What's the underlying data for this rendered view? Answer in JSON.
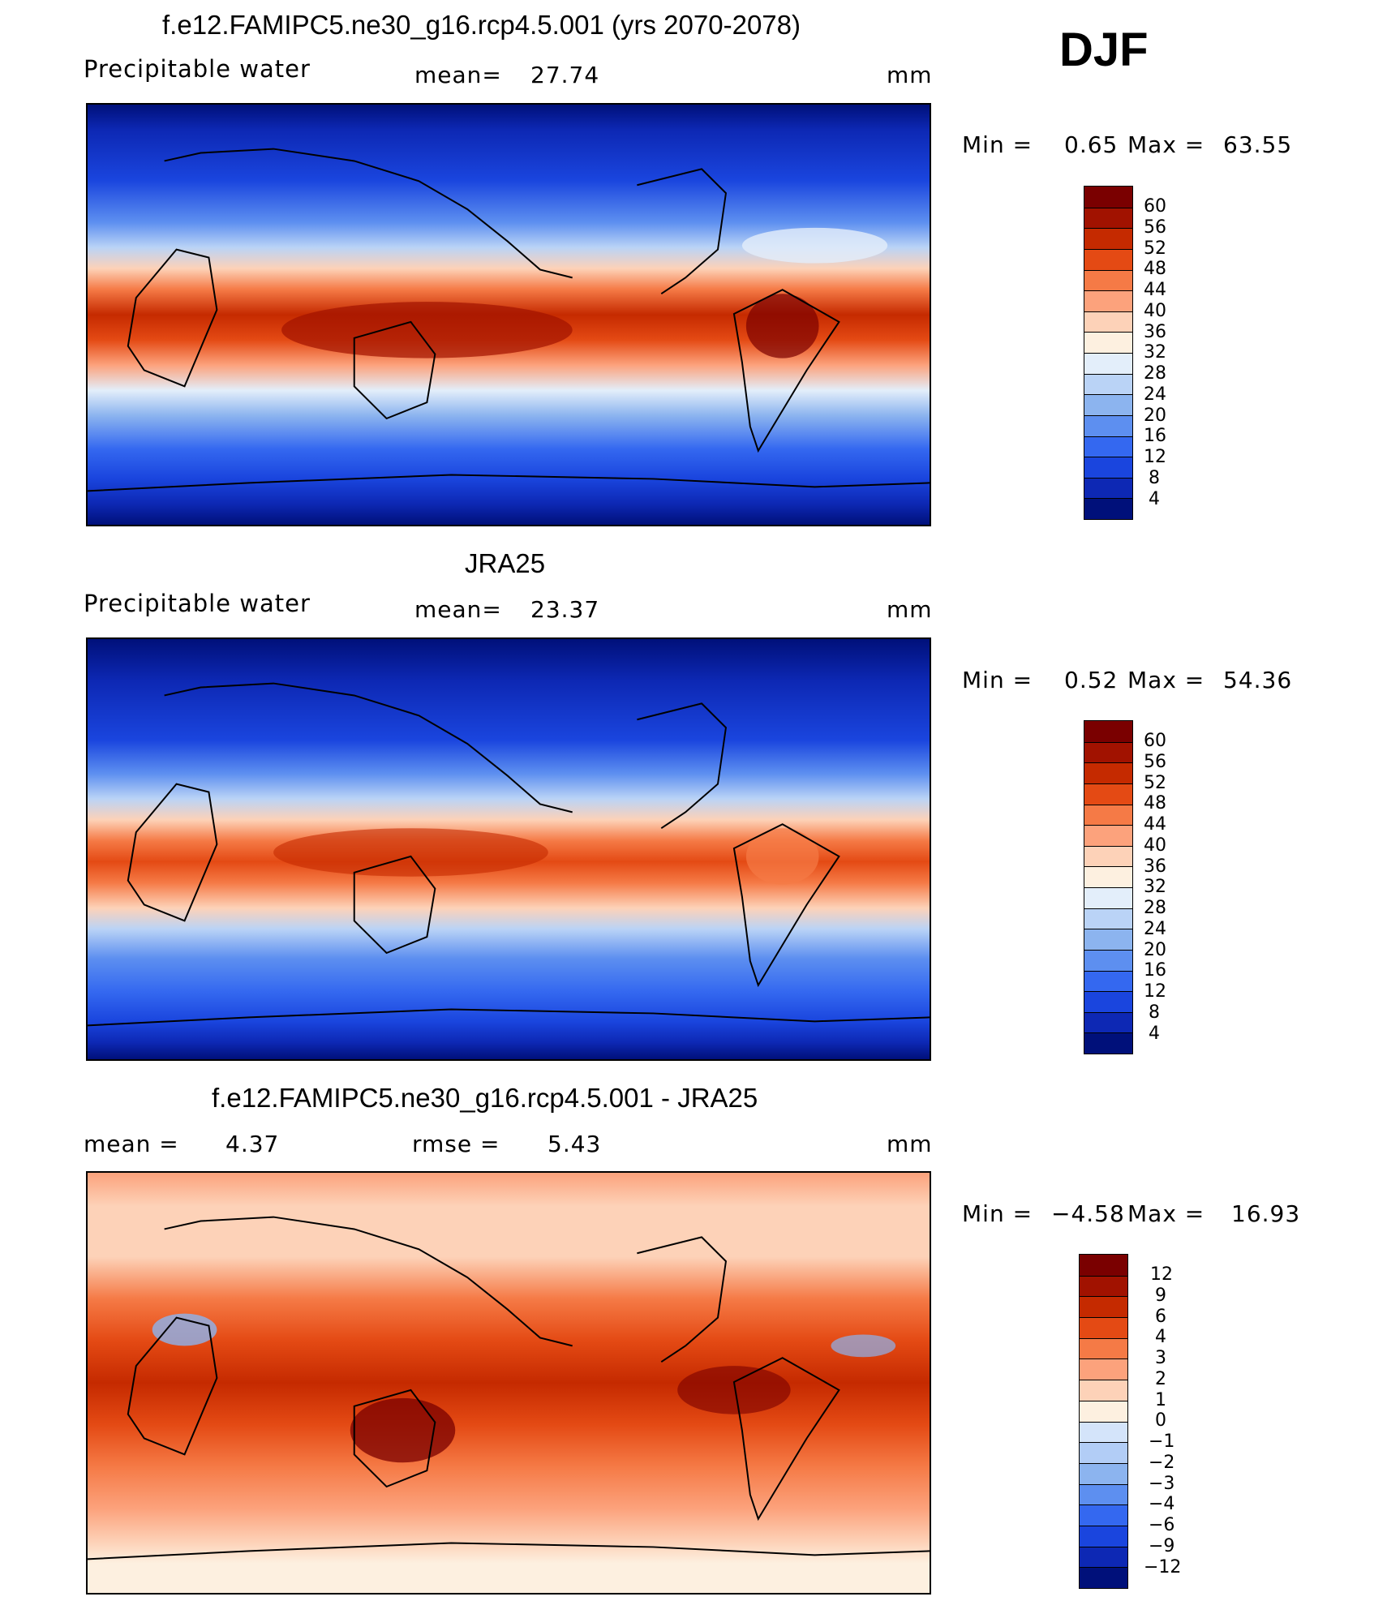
{
  "season": "DJF",
  "panels": [
    {
      "title": "f.e12.FAMIPC5.ne30_g16.rcp4.5.001 (yrs 2070-2078)",
      "left_label": "Precipitable water",
      "center_label": "mean=",
      "center_value": "27.74",
      "units": "mm",
      "min_label": "Min =",
      "min_value": "0.65",
      "max_label": "Max =",
      "max_value": "63.55",
      "levels": [
        "60",
        "56",
        "52",
        "48",
        "44",
        "40",
        "36",
        "32",
        "28",
        "24",
        "20",
        "16",
        "12",
        "8",
        "4"
      ],
      "colors": [
        "#7a0000",
        "#a11200",
        "#c52a00",
        "#e44a14",
        "#f57a46",
        "#fca27c",
        "#fdd2b8",
        "#fdf0e0",
        "#e3eefa",
        "#bad3f6",
        "#8cb4ef",
        "#5d8ff0",
        "#3468f0",
        "#1a45de",
        "#0d28b4",
        "#00107a"
      ]
    },
    {
      "title": "JRA25",
      "left_label": "Precipitable water",
      "center_label": "mean=",
      "center_value": "23.37",
      "units": "mm",
      "min_label": "Min =",
      "min_value": "0.52",
      "max_label": "Max =",
      "max_value": "54.36",
      "levels": [
        "60",
        "56",
        "52",
        "48",
        "44",
        "40",
        "36",
        "32",
        "28",
        "24",
        "20",
        "16",
        "12",
        "8",
        "4"
      ],
      "colors": [
        "#7a0000",
        "#a11200",
        "#c52a00",
        "#e44a14",
        "#f57a46",
        "#fca27c",
        "#fdd2b8",
        "#fdf0e0",
        "#e3eefa",
        "#bad3f6",
        "#8cb4ef",
        "#5d8ff0",
        "#3468f0",
        "#1a45de",
        "#0d28b4",
        "#00107a"
      ]
    },
    {
      "title": "f.e12.FAMIPC5.ne30_g16.rcp4.5.001 - JRA25",
      "left_label": "mean =",
      "left_value": "4.37",
      "center_label": "rmse =",
      "center_value": "5.43",
      "units": "mm",
      "min_label": "Min =",
      "min_value": "−4.58",
      "max_label": "Max =",
      "max_value": "16.93",
      "levels": [
        "12",
        "9",
        "6",
        "4",
        "3",
        "2",
        "1",
        "0",
        "−1",
        "−2",
        "−3",
        "−4",
        "−6",
        "−9",
        "−12"
      ],
      "colors": [
        "#7a0000",
        "#a11200",
        "#c52a00",
        "#e44a14",
        "#f57a46",
        "#fca27c",
        "#fdd2b8",
        "#fdf0e0",
        "#d4e4fa",
        "#b2cdf6",
        "#8cb4ef",
        "#5d8ff0",
        "#3468f0",
        "#1a45de",
        "#0d28b4",
        "#00107a"
      ]
    }
  ]
}
